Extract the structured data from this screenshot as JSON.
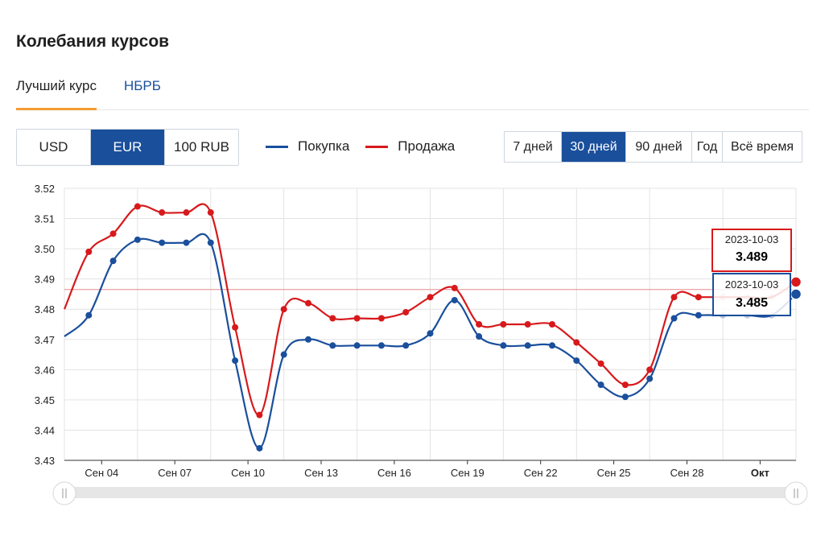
{
  "page": {
    "title": "Колебания курсов",
    "tabs": [
      {
        "label": "Лучший курс",
        "active": true
      },
      {
        "label": "НБРБ",
        "active": false
      }
    ],
    "currencies": [
      {
        "label": "USD",
        "active": false
      },
      {
        "label": "EUR",
        "active": true
      },
      {
        "label": "100 RUB",
        "active": false
      }
    ],
    "periods": [
      {
        "label": "7 дней",
        "active": false
      },
      {
        "label": "30 дней",
        "active": true
      },
      {
        "label": "90 дней",
        "active": false
      },
      {
        "label": "Год",
        "active": false
      },
      {
        "label": "Всё время",
        "active": false
      }
    ],
    "legend": {
      "buy_label": "Покупка",
      "sell_label": "Продажа"
    },
    "colors": {
      "buy": "#1a4f9c",
      "sell": "#d7191c",
      "accent": "#1a4f9c",
      "tab_underline": "#f39c33"
    },
    "tooltips": {
      "sell": {
        "date": "2023-10-03",
        "value": "3.489"
      },
      "buy": {
        "date": "2023-10-03",
        "value": "3.485"
      }
    },
    "scrollbar_handle_icon": "grip-lines-icon"
  },
  "chart_data": {
    "type": "line",
    "x_tick_labels": [
      "Сен 04",
      "Сен 07",
      "Сен 10",
      "Сен 13",
      "Сен 16",
      "Сен 19",
      "Сен 22",
      "Сен 25",
      "Сен 28",
      "Окт"
    ],
    "ylim": [
      3.43,
      3.52
    ],
    "y_ticks": [
      "3.43",
      "3.44",
      "3.45",
      "3.46",
      "3.47",
      "3.48",
      "3.49",
      "3.50",
      "3.51",
      "3.52"
    ],
    "reference_line": 3.4865,
    "grid": true,
    "x": [
      "2023-09-03",
      "2023-09-04",
      "2023-09-05",
      "2023-09-06",
      "2023-09-07",
      "2023-09-08",
      "2023-09-09",
      "2023-09-10",
      "2023-09-11",
      "2023-09-12",
      "2023-09-13",
      "2023-09-14",
      "2023-09-15",
      "2023-09-16",
      "2023-09-17",
      "2023-09-18",
      "2023-09-19",
      "2023-09-20",
      "2023-09-21",
      "2023-09-22",
      "2023-09-23",
      "2023-09-24",
      "2023-09-25",
      "2023-09-26",
      "2023-09-27",
      "2023-09-28",
      "2023-09-29",
      "2023-09-30",
      "2023-10-01",
      "2023-10-02",
      "2023-10-03"
    ],
    "series": [
      {
        "name": "Покупка",
        "values": [
          3.471,
          3.478,
          3.496,
          3.503,
          3.502,
          3.502,
          3.502,
          3.463,
          3.434,
          3.465,
          3.47,
          3.468,
          3.468,
          3.468,
          3.468,
          3.472,
          3.483,
          3.471,
          3.468,
          3.468,
          3.468,
          3.463,
          3.455,
          3.451,
          3.457,
          3.477,
          3.478,
          3.478,
          3.478,
          3.478,
          3.485
        ]
      },
      {
        "name": "Продажа",
        "values": [
          3.48,
          3.499,
          3.505,
          3.514,
          3.512,
          3.512,
          3.512,
          3.474,
          3.445,
          3.48,
          3.482,
          3.477,
          3.477,
          3.477,
          3.479,
          3.484,
          3.487,
          3.475,
          3.475,
          3.475,
          3.475,
          3.469,
          3.462,
          3.455,
          3.46,
          3.484,
          3.484,
          3.484,
          3.484,
          3.484,
          3.489
        ]
      }
    ]
  }
}
